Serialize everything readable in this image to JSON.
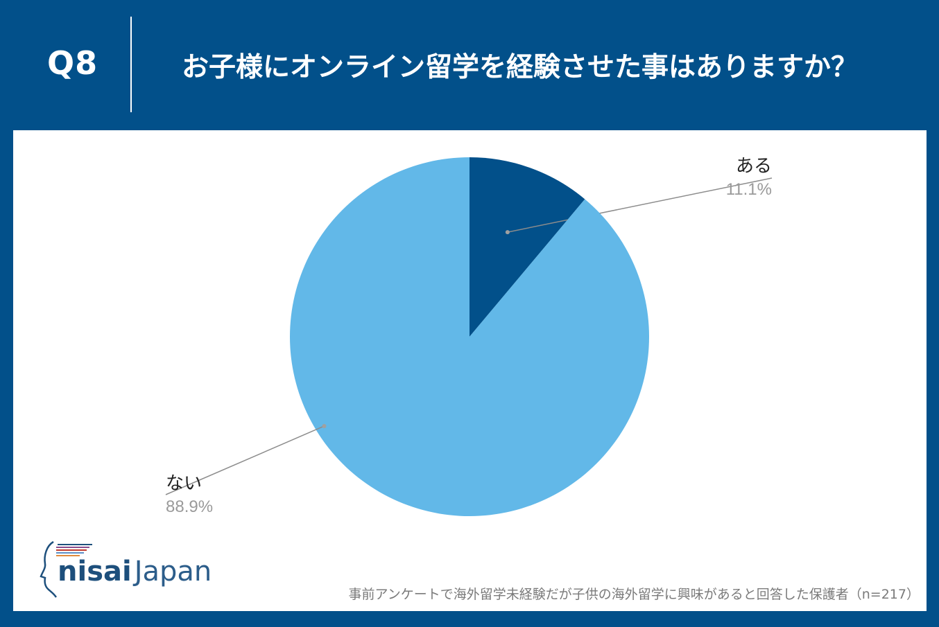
{
  "header": {
    "question_number": "Q8",
    "title": "お子様にオンライン留学を経験させた事はありますか？"
  },
  "chart_data": {
    "type": "pie",
    "categories": [
      "ある",
      "ない"
    ],
    "values": [
      11.1,
      88.9
    ],
    "value_labels": [
      "11.1%",
      "88.9%"
    ],
    "colors": [
      "#02508a",
      "#62b8e8"
    ],
    "label_placement": "outside-with-leader-lines"
  },
  "logo": {
    "brand_main": "nisai",
    "brand_sub": "Japan"
  },
  "footnote": "事前アンケートで海外留学未経験だが子供の海外留学に興味があると回答した保護者（n=217）"
}
